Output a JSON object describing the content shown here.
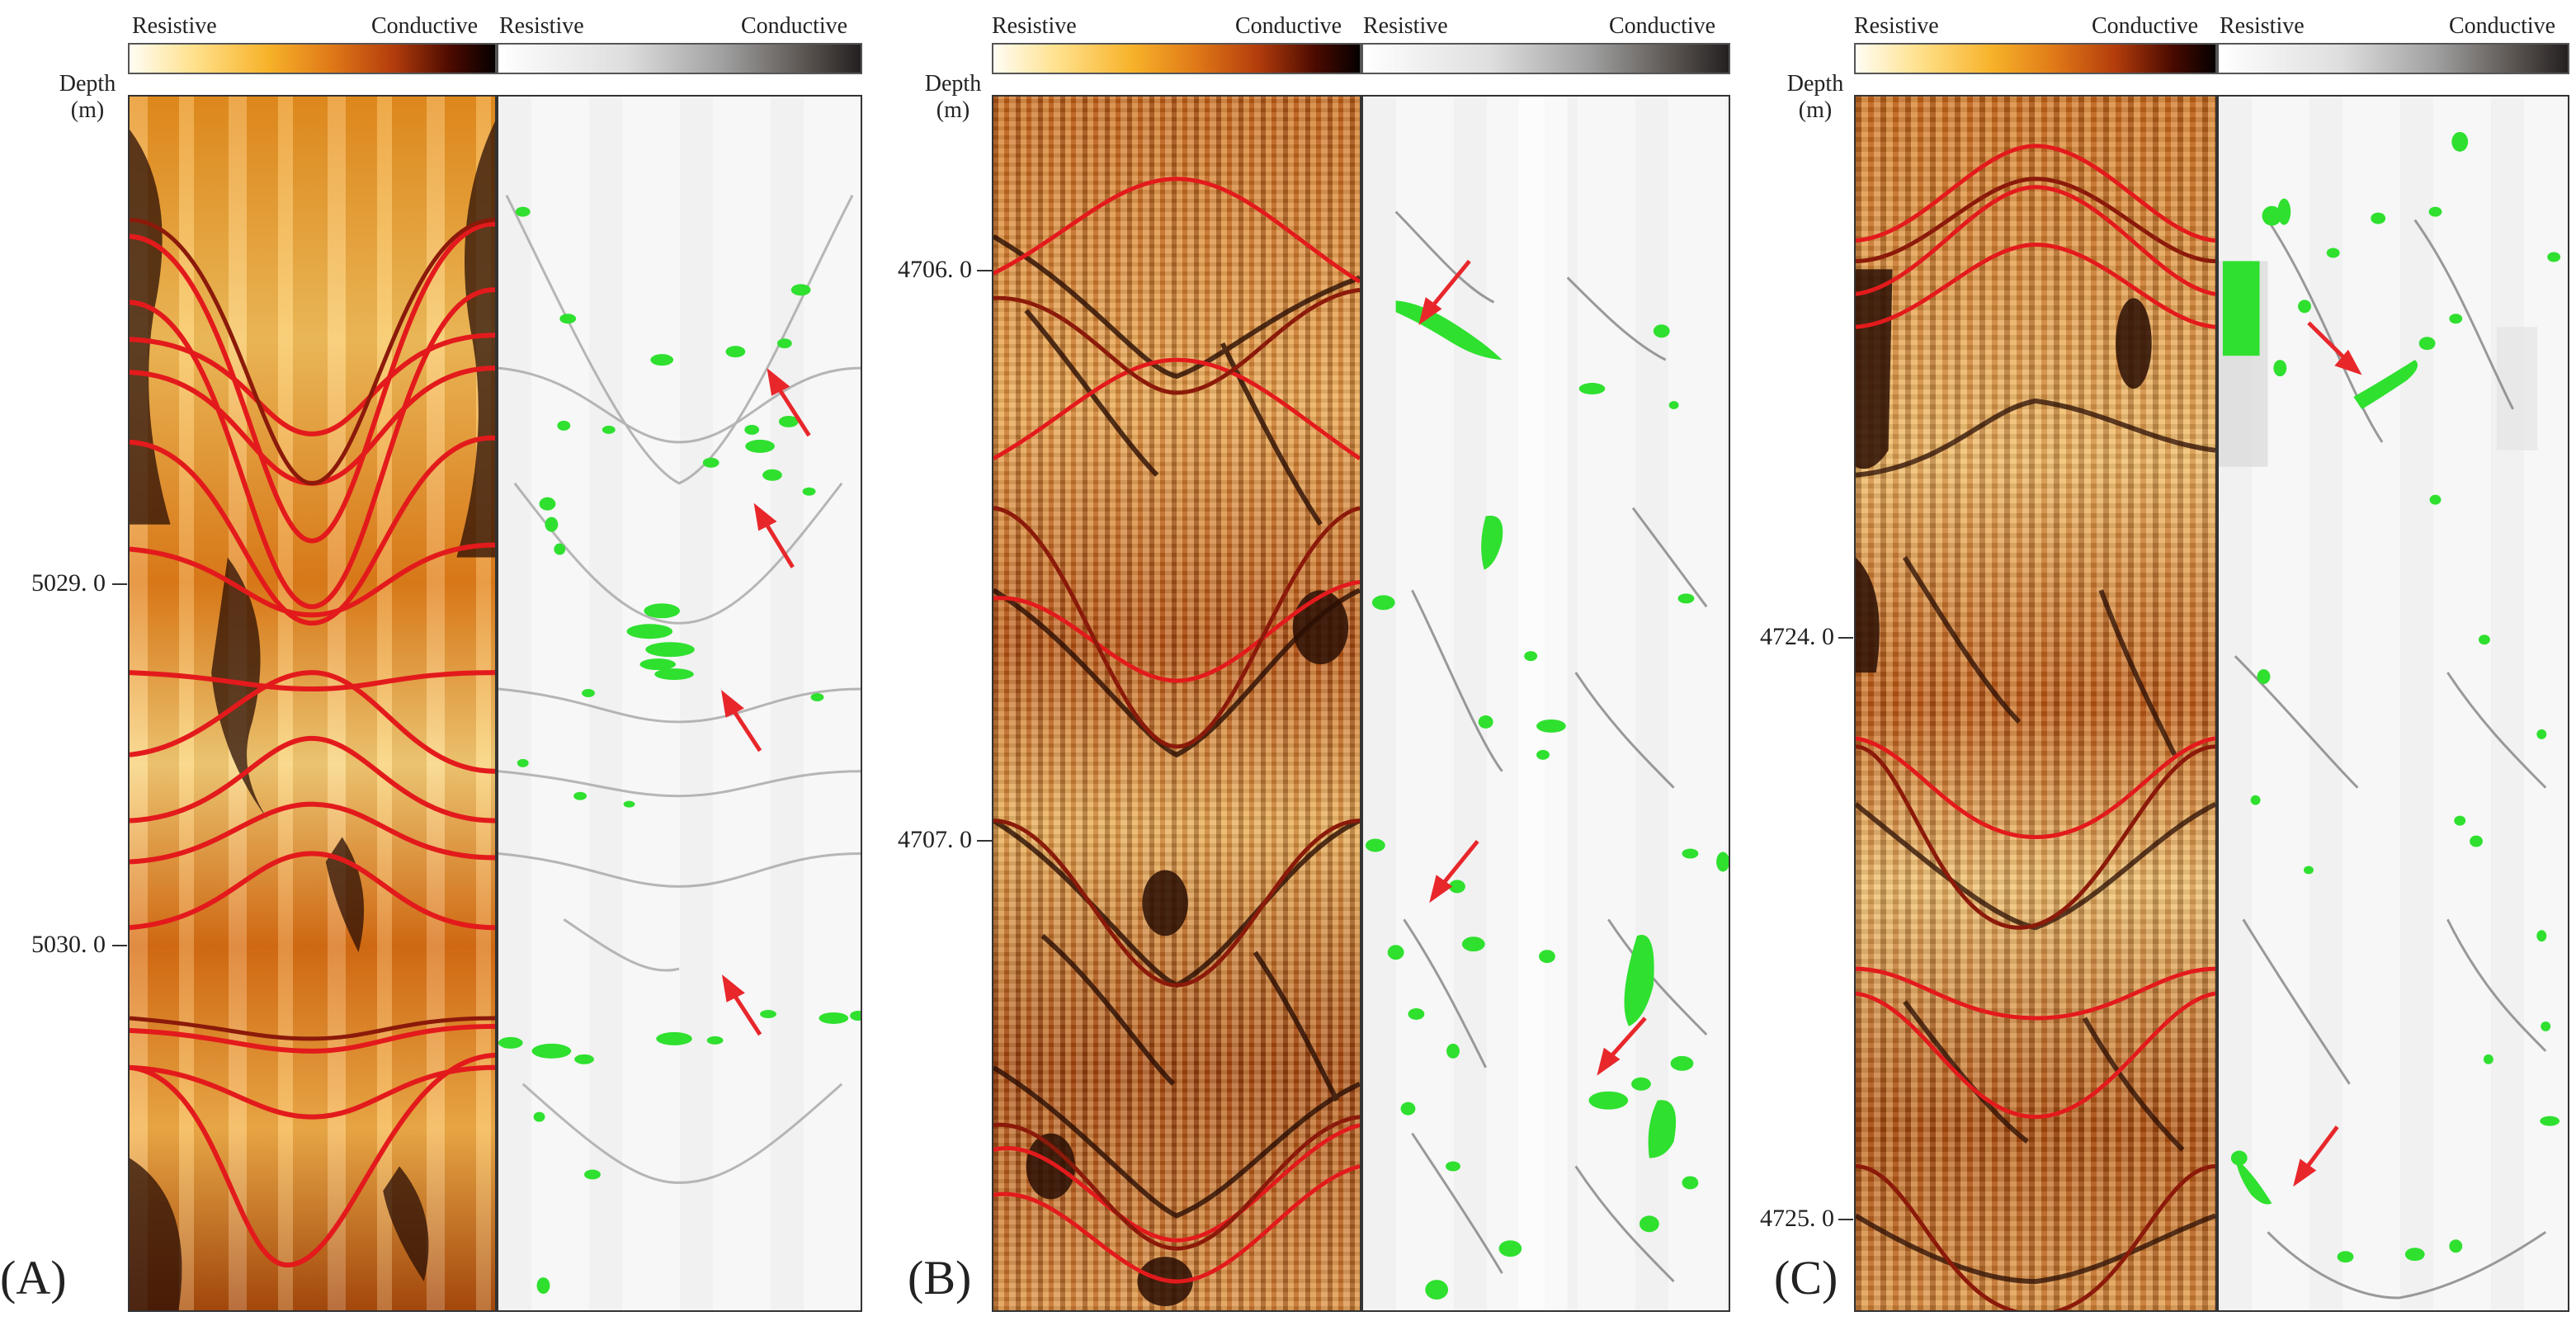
{
  "colorbar_labels": {
    "resistive": "Resistive",
    "conductive": "Conductive"
  },
  "depth_header": {
    "line1": "Depth",
    "line2": "(m)"
  },
  "panels": [
    {
      "id": "A",
      "letter": "(A)",
      "depth_ticks": [
        "5029. 0",
        "5030. 0"
      ]
    },
    {
      "id": "B",
      "letter": "(B)",
      "depth_ticks": [
        "4706. 0",
        "4707. 0"
      ]
    },
    {
      "id": "C",
      "letter": "(C)",
      "depth_ticks": [
        "4724. 0",
        "4725. 0"
      ]
    }
  ],
  "colors": {
    "fracture_trace": "#e31a1c",
    "fracture_trace_dark": "#8b1a0a",
    "annotation_arrow": "#e8272b",
    "fracture_fill": "#2fe02f",
    "dark_feature": "#2a0e04"
  }
}
